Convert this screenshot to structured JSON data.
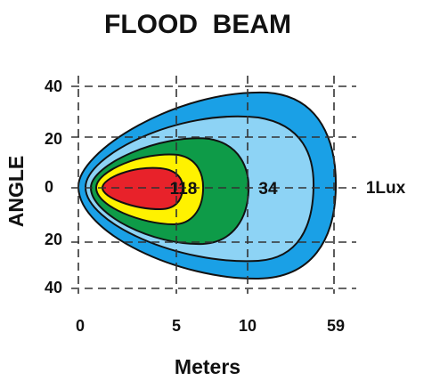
{
  "title": "FLOOD  BEAM",
  "y_axis_label": "ANGLE",
  "x_axis_label": "Meters",
  "y_ticks": [
    "40",
    "20",
    "0",
    "20",
    "40"
  ],
  "x_ticks": [
    "0",
    "5",
    "10",
    "59"
  ],
  "zone_labels": [
    "118",
    "34",
    "1Lux"
  ]
}
